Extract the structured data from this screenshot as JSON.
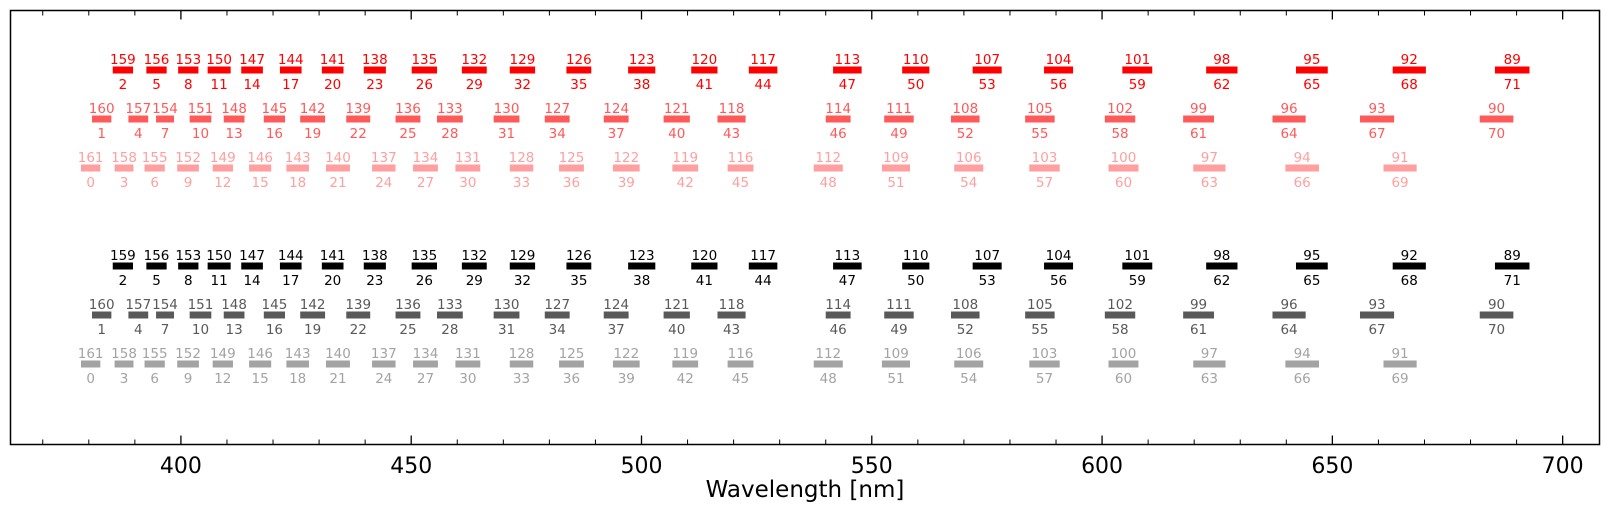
{
  "chart_data": {
    "type": "bar",
    "xlabel": "Wavelength [nm]",
    "ylabel": "",
    "xlim": [
      363,
      708
    ],
    "xticks_major": [
      400,
      450,
      500,
      550,
      600,
      650,
      700
    ],
    "xticks_minor": [
      370,
      380,
      390,
      410,
      420,
      430,
      440,
      460,
      470,
      480,
      490,
      510,
      520,
      530,
      540,
      560,
      570,
      580,
      590,
      610,
      620,
      630,
      640,
      660,
      670,
      680,
      690
    ],
    "grid": false,
    "colors": {
      "red_1": "#ff0000",
      "red_2": "#ff5959",
      "red_3": "#ff9f9f",
      "black_1": "#000000",
      "black_2": "#595959",
      "black_3": "#a3a3a3"
    },
    "segment_rows": [
      {
        "color_key": "red",
        "tiers": [
          {
            "shade": 1,
            "starts": [
              385.2,
              392.5,
              399.4,
              405.8,
              413.1,
              421.5,
              430.6,
              439.7,
              450.1,
              461,
              471.4,
              483.7,
              497.1,
              510.8,
              523.3,
              541.6,
              556.6,
              571.9,
              587.4,
              604.4,
              622.6,
              642.1,
              663.1,
              685.3
            ],
            "ends": [
              389.6,
              396.9,
              403.8,
              410.8,
              417.8,
              426.2,
              435.3,
              444.5,
              455.6,
              466.4,
              476.9,
              489.1,
              503,
              516.5,
              529.5,
              547.8,
              562.5,
              578.2,
              593.7,
              610.9,
              629.4,
              649,
              670.3,
              692.8
            ],
            "top_labels": [
              "159",
              "156",
              "153",
              "150",
              "147",
              "144",
              "141",
              "138",
              "135",
              "132",
              "129",
              "126",
              "123",
              "120",
              "117",
              "113",
              "110",
              "107",
              "104",
              "101",
              "98",
              "95",
              "92",
              "89"
            ],
            "bottom_labels": [
              "2",
              "5",
              "8",
              "11",
              "14",
              "17",
              "20",
              "23",
              "26",
              "29",
              "32",
              "35",
              "38",
              "41",
              "44",
              "47",
              "50",
              "53",
              "56",
              "59",
              "62",
              "65",
              "68",
              "71"
            ]
          },
          {
            "shade": 2,
            "starts": [
              380.7,
              388.6,
              394.6,
              401.9,
              409.3,
              418,
              425.9,
              435.9,
              446.6,
              455.6,
              467.9,
              479,
              491.8,
              504.8,
              516.5,
              540,
              552.7,
              567.2,
              583.3,
              600.6,
              617.6,
              637,
              656,
              682
            ],
            "ends": [
              384.9,
              392.9,
              398.5,
              406.6,
              413.8,
              422.6,
              431.3,
              441.1,
              452,
              461.2,
              473.5,
              484.4,
              497.2,
              510.5,
              522.6,
              545.4,
              559.1,
              573.4,
              589.7,
              607.2,
              624.3,
              644.2,
              663.4,
              689.3
            ],
            "top_labels": [
              "160",
              "157",
              "154",
              "151",
              "148",
              "145",
              "142",
              "139",
              "136",
              "133",
              "130",
              "127",
              "124",
              "121",
              "118",
              "114",
              "111",
              "108",
              "105",
              "102",
              "99",
              "96",
              "93",
              "90"
            ],
            "bottom_labels": [
              "1",
              "4",
              "7",
              "10",
              "13",
              "16",
              "19",
              "22",
              "25",
              "28",
              "31",
              "34",
              "37",
              "40",
              "43",
              "46",
              "49",
              "52",
              "55",
              "58",
              "61",
              "64",
              "67",
              "70"
            ]
          },
          {
            "shade": 3,
            "starts": [
              378.3,
              385.6,
              392.1,
              399.2,
              406.9,
              414.8,
              422.9,
              431.5,
              441.5,
              450.4,
              459.6,
              471.4,
              482.1,
              493.8,
              506.7,
              518.7,
              537.4,
              552.2,
              567.9,
              584.2,
              601.4,
              619.8,
              639.8,
              661.1
            ],
            "ends": [
              382.5,
              389.7,
              396.5,
              403.9,
              411.3,
              419.6,
              427.8,
              436.7,
              446.6,
              455.8,
              465,
              476.5,
              487.5,
              499.6,
              512.3,
              524.3,
              543.7,
              558.3,
              574.2,
              590.8,
              607.9,
              626.8,
              647.1,
              668.3
            ],
            "top_labels": [
              "161",
              "158",
              "155",
              "152",
              "149",
              "146",
              "143",
              "140",
              "137",
              "134",
              "131",
              "128",
              "125",
              "122",
              "119",
              "116",
              "112",
              "109",
              "106",
              "103",
              "100",
              "97",
              "94",
              "91"
            ],
            "bottom_labels": [
              "0",
              "3",
              "6",
              "9",
              "12",
              "15",
              "18",
              "21",
              "24",
              "27",
              "30",
              "33",
              "36",
              "39",
              "42",
              "45",
              "48",
              "51",
              "54",
              "57",
              "60",
              "63",
              "66",
              "69"
            ]
          }
        ]
      },
      {
        "color_key": "black",
        "tiers": [
          {
            "shade": 1,
            "starts": [
              385.2,
              392.5,
              399.4,
              405.8,
              413.1,
              421.5,
              430.6,
              439.7,
              450.1,
              461,
              471.4,
              483.7,
              497.1,
              510.8,
              523.3,
              541.6,
              556.6,
              571.9,
              587.4,
              604.4,
              622.6,
              642.1,
              663.1,
              685.3
            ],
            "ends": [
              389.6,
              396.9,
              403.8,
              410.8,
              417.8,
              426.2,
              435.3,
              444.5,
              455.6,
              466.4,
              476.9,
              489.1,
              503,
              516.5,
              529.5,
              547.8,
              562.5,
              578.2,
              593.7,
              610.9,
              629.4,
              649,
              670.3,
              692.8
            ],
            "top_labels": [
              "159",
              "156",
              "153",
              "150",
              "147",
              "144",
              "141",
              "138",
              "135",
              "132",
              "129",
              "126",
              "123",
              "120",
              "117",
              "113",
              "110",
              "107",
              "104",
              "101",
              "98",
              "95",
              "92",
              "89"
            ],
            "bottom_labels": [
              "2",
              "5",
              "8",
              "11",
              "14",
              "17",
              "20",
              "23",
              "26",
              "29",
              "32",
              "35",
              "38",
              "41",
              "44",
              "47",
              "50",
              "53",
              "56",
              "59",
              "62",
              "65",
              "68",
              "71"
            ]
          },
          {
            "shade": 2,
            "starts": [
              380.7,
              388.6,
              394.6,
              401.9,
              409.3,
              418,
              425.9,
              435.9,
              446.6,
              455.6,
              467.9,
              479,
              491.8,
              504.8,
              516.5,
              540,
              552.7,
              567.2,
              583.3,
              600.6,
              617.6,
              637,
              656,
              682
            ],
            "ends": [
              384.9,
              392.9,
              398.5,
              406.6,
              413.8,
              422.6,
              431.3,
              441.1,
              452,
              461.2,
              473.5,
              484.4,
              497.2,
              510.5,
              522.6,
              545.4,
              559.1,
              573.4,
              589.7,
              607.2,
              624.3,
              644.2,
              663.4,
              689.3
            ],
            "top_labels": [
              "160",
              "157",
              "154",
              "151",
              "148",
              "145",
              "142",
              "139",
              "136",
              "133",
              "130",
              "127",
              "124",
              "121",
              "118",
              "114",
              "111",
              "108",
              "105",
              "102",
              "99",
              "96",
              "93",
              "90"
            ],
            "bottom_labels": [
              "1",
              "4",
              "7",
              "10",
              "13",
              "16",
              "19",
              "22",
              "25",
              "28",
              "31",
              "34",
              "37",
              "40",
              "43",
              "46",
              "49",
              "52",
              "55",
              "58",
              "61",
              "64",
              "67",
              "70"
            ]
          },
          {
            "shade": 3,
            "starts": [
              378.3,
              385.6,
              392.1,
              399.2,
              406.9,
              414.8,
              422.9,
              431.5,
              441.5,
              450.4,
              459.6,
              471.4,
              482.1,
              493.8,
              506.7,
              518.7,
              537.4,
              552.2,
              567.9,
              584.2,
              601.4,
              619.8,
              639.8,
              661.1
            ],
            "ends": [
              382.5,
              389.7,
              396.5,
              403.9,
              411.3,
              419.6,
              427.8,
              436.7,
              446.6,
              455.8,
              465,
              476.5,
              487.5,
              499.6,
              512.3,
              524.3,
              543.7,
              558.3,
              574.2,
              590.8,
              607.9,
              626.8,
              647.1,
              668.3
            ],
            "top_labels": [
              "161",
              "158",
              "155",
              "152",
              "149",
              "146",
              "143",
              "140",
              "137",
              "134",
              "131",
              "128",
              "125",
              "122",
              "119",
              "116",
              "112",
              "109",
              "106",
              "103",
              "100",
              "97",
              "94",
              "91"
            ],
            "bottom_labels": [
              "0",
              "3",
              "6",
              "9",
              "12",
              "15",
              "18",
              "21",
              "24",
              "27",
              "30",
              "33",
              "36",
              "39",
              "42",
              "45",
              "48",
              "51",
              "54",
              "57",
              "60",
              "63",
              "66",
              "69"
            ]
          }
        ]
      }
    ]
  }
}
